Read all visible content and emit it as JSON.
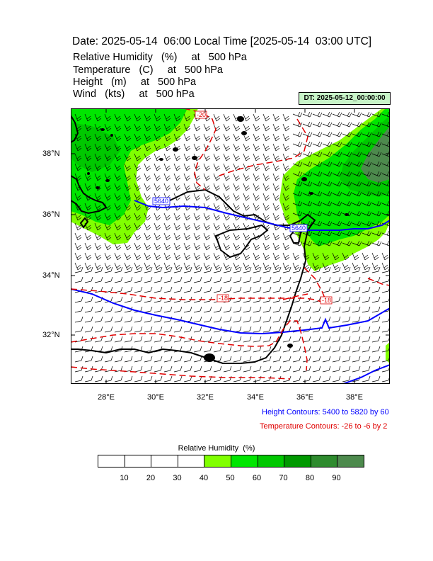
{
  "header": {
    "title": "Date: 2025-05-14  06:00 Local Time [2025-05-14  03:00 UTC]",
    "variables": [
      "Relative Humidity   (%)     at   500 hPa",
      "Temperature   (C)     at   500 hPa",
      "Height   (m)     at   500 hPa",
      "Wind   (kts)     at   500 hPa"
    ],
    "dt_label": "DT: 2025-05-12_00:00:00"
  },
  "map": {
    "lat_labels": [
      "38°N",
      "36°N",
      "34°N",
      "32°N"
    ],
    "lon_labels": [
      "28°E",
      "30°E",
      "32°E",
      "34°E",
      "36°E",
      "38°E"
    ],
    "contour_labels": {
      "temp_top": "-20",
      "temp_mid": "-18",
      "temp_right": "-18",
      "height_left": "5640",
      "height_right": "5640"
    },
    "colors": {
      "height": "#0000ff",
      "temperature": "#e00000",
      "coast": "#000000",
      "barb": "#000000"
    }
  },
  "notes": {
    "height_contours": "Height Contours: 5400 to 5820 by 60",
    "temperature_contours": "Temperature Contours: -26 to -6 by 2"
  },
  "legend": {
    "title": "Relative Humidity  (%)",
    "ticks": [
      "10",
      "20",
      "30",
      "40",
      "50",
      "60",
      "70",
      "80",
      "90"
    ],
    "colors": [
      "#ffffff",
      "#ffffff",
      "#ffffff",
      "#ffffff",
      "#80ff00",
      "#00e600",
      "#00c800",
      "#009900",
      "#2e8b2e",
      "#4d8a4d"
    ]
  }
}
